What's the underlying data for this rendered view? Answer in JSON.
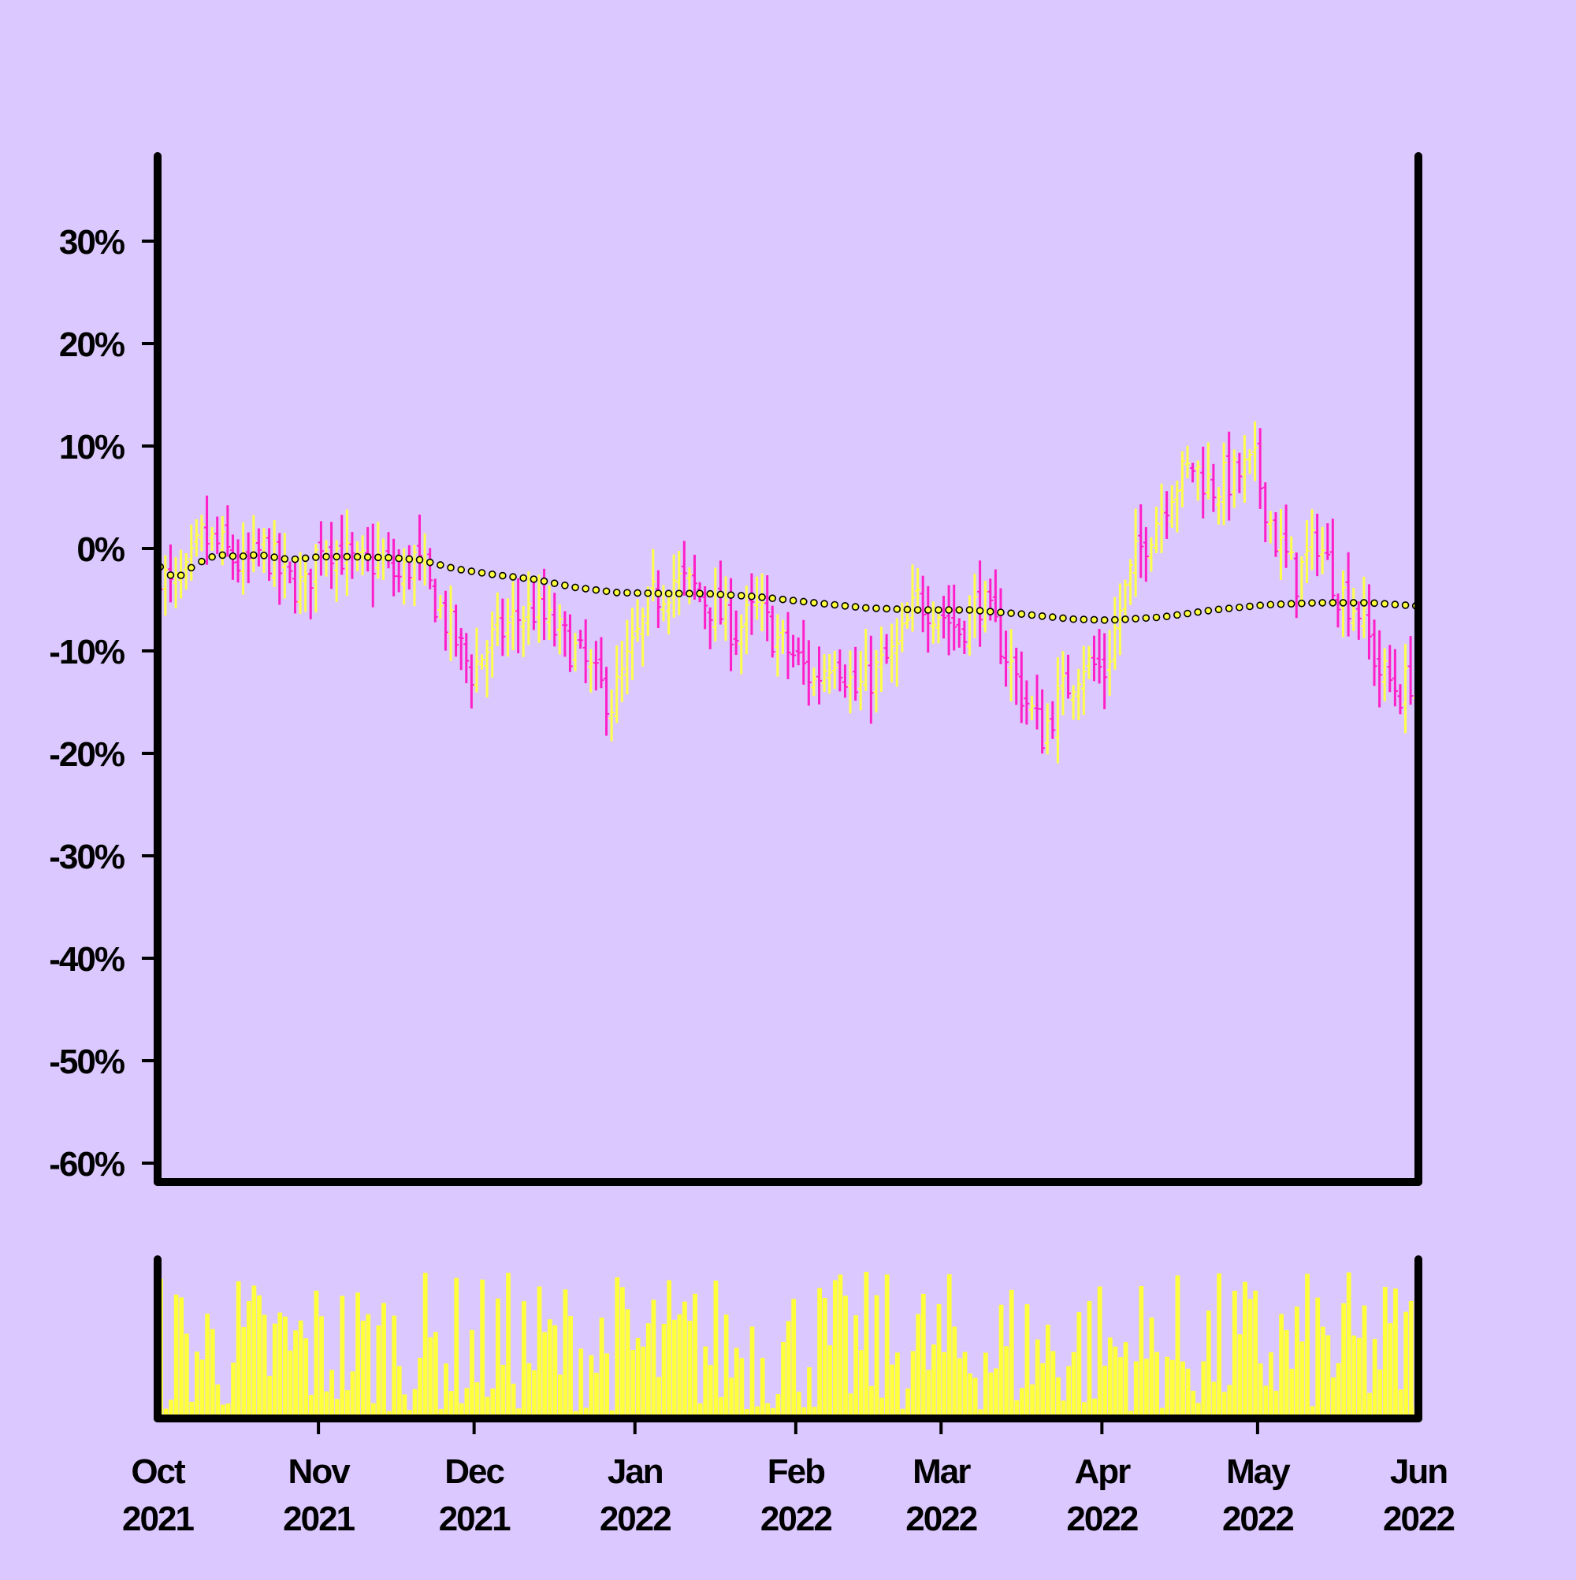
{
  "colors": {
    "background": "#dbc8fe",
    "up": "#ffff4a",
    "down": "#ff1fc8",
    "volume": "#ffff3c",
    "axis": "#000000",
    "moving_average_fill": "#ffff3c"
  },
  "chart_data": {
    "type": "ohlc",
    "title": "",
    "ylabel": "",
    "xlabel": "",
    "ylim": [
      -62,
      38
    ],
    "xlim": [
      "2021-10-01",
      "2022-06-01"
    ],
    "grid": false,
    "legend": "none",
    "y_ticks": [
      {
        "value": 30,
        "label": "30%"
      },
      {
        "value": 20,
        "label": "20%"
      },
      {
        "value": 10,
        "label": "10%"
      },
      {
        "value": 0,
        "label": "0%"
      },
      {
        "value": -10,
        "label": "-10%"
      },
      {
        "value": -20,
        "label": "-20%"
      },
      {
        "value": -30,
        "label": "-30%"
      },
      {
        "value": -40,
        "label": "-40%"
      },
      {
        "value": -50,
        "label": "-50%"
      },
      {
        "value": -60,
        "label": "-60%"
      }
    ],
    "x_ticks": [
      {
        "date": "2021-10-01",
        "month": "Oct",
        "year": "2021"
      },
      {
        "date": "2021-11-01",
        "month": "Nov",
        "year": "2021"
      },
      {
        "date": "2021-12-01",
        "month": "Dec",
        "year": "2021"
      },
      {
        "date": "2022-01-01",
        "month": "Jan",
        "year": "2022"
      },
      {
        "date": "2022-02-01",
        "month": "Feb",
        "year": "2022"
      },
      {
        "date": "2022-03-01",
        "month": "Mar",
        "year": "2022"
      },
      {
        "date": "2022-04-01",
        "month": "Apr",
        "year": "2022"
      },
      {
        "date": "2022-05-01",
        "month": "May",
        "year": "2022"
      },
      {
        "date": "2022-06-01",
        "month": "Jun",
        "year": "2022"
      }
    ],
    "price_close_anchors": [
      [
        "2021-10-01",
        -2
      ],
      [
        "2021-10-03",
        -4
      ],
      [
        "2021-10-06",
        -3
      ],
      [
        "2021-10-09",
        1
      ],
      [
        "2021-10-13",
        0
      ],
      [
        "2021-10-17",
        -2
      ],
      [
        "2021-10-21",
        0
      ],
      [
        "2021-10-25",
        -3
      ],
      [
        "2021-10-29",
        -4
      ],
      [
        "2021-11-01",
        1
      ],
      [
        "2021-11-04",
        0
      ],
      [
        "2021-11-08",
        -2
      ],
      [
        "2021-11-12",
        -1
      ],
      [
        "2021-11-16",
        -3
      ],
      [
        "2021-11-19",
        -1
      ],
      [
        "2021-11-23",
        -5
      ],
      [
        "2021-11-27",
        -9
      ],
      [
        "2021-11-30",
        -12
      ],
      [
        "2021-12-04",
        -9
      ],
      [
        "2021-12-08",
        -7
      ],
      [
        "2021-12-12",
        -6
      ],
      [
        "2021-12-16",
        -8
      ],
      [
        "2021-12-20",
        -10
      ],
      [
        "2021-12-24",
        -13
      ],
      [
        "2021-12-27",
        -15
      ],
      [
        "2021-12-31",
        -10
      ],
      [
        "2022-01-04",
        -5
      ],
      [
        "2022-01-08",
        -3
      ],
      [
        "2022-01-12",
        -4
      ],
      [
        "2022-01-16",
        -6
      ],
      [
        "2022-01-20",
        -8
      ],
      [
        "2022-01-24",
        -6
      ],
      [
        "2022-01-28",
        -9
      ],
      [
        "2022-02-01",
        -11
      ],
      [
        "2022-02-04",
        -13
      ],
      [
        "2022-02-08",
        -10
      ],
      [
        "2022-02-12",
        -14
      ],
      [
        "2022-02-16",
        -12
      ],
      [
        "2022-02-20",
        -10
      ],
      [
        "2022-02-24",
        -5
      ],
      [
        "2022-02-28",
        -6
      ],
      [
        "2022-03-04",
        -8
      ],
      [
        "2022-03-08",
        -5
      ],
      [
        "2022-03-12",
        -9
      ],
      [
        "2022-03-16",
        -14
      ],
      [
        "2022-03-20",
        -18
      ],
      [
        "2022-03-24",
        -14
      ],
      [
        "2022-03-28",
        -11
      ],
      [
        "2022-04-01",
        -12
      ],
      [
        "2022-04-04",
        -6
      ],
      [
        "2022-04-07",
        -1
      ],
      [
        "2022-04-10",
        2
      ],
      [
        "2022-04-14",
        6
      ],
      [
        "2022-04-18",
        8
      ],
      [
        "2022-04-22",
        6
      ],
      [
        "2022-04-26",
        7
      ],
      [
        "2022-04-30",
        8
      ],
      [
        "2022-05-04",
        1
      ],
      [
        "2022-05-08",
        -3
      ],
      [
        "2022-05-12",
        1
      ],
      [
        "2022-05-16",
        -4
      ],
      [
        "2022-05-20",
        -6
      ],
      [
        "2022-05-24",
        -12
      ],
      [
        "2022-05-28",
        -14
      ],
      [
        "2022-05-31",
        -12
      ]
    ],
    "moving_average_anchors": [
      [
        "2021-10-01",
        -1.8
      ],
      [
        "2021-10-04",
        -3.0
      ],
      [
        "2021-10-08",
        -1.5
      ],
      [
        "2021-10-12",
        -0.6
      ],
      [
        "2021-10-16",
        -0.8
      ],
      [
        "2021-10-20",
        -0.6
      ],
      [
        "2021-10-26",
        -1.1
      ],
      [
        "2021-11-01",
        -0.8
      ],
      [
        "2021-11-07",
        -0.8
      ],
      [
        "2021-11-14",
        -0.9
      ],
      [
        "2021-11-20",
        -1.1
      ],
      [
        "2021-11-27",
        -2.0
      ],
      [
        "2021-12-05",
        -2.6
      ],
      [
        "2021-12-12",
        -3.0
      ],
      [
        "2021-12-20",
        -3.8
      ],
      [
        "2021-12-28",
        -4.3
      ],
      [
        "2022-01-06",
        -4.4
      ],
      [
        "2022-01-14",
        -4.4
      ],
      [
        "2022-01-24",
        -4.7
      ],
      [
        "2022-02-04",
        -5.3
      ],
      [
        "2022-02-14",
        -5.8
      ],
      [
        "2022-02-24",
        -6.0
      ],
      [
        "2022-03-06",
        -6.0
      ],
      [
        "2022-03-16",
        -6.4
      ],
      [
        "2022-03-26",
        -6.9
      ],
      [
        "2022-04-02",
        -7.0
      ],
      [
        "2022-04-12",
        -6.7
      ],
      [
        "2022-04-22",
        -6.0
      ],
      [
        "2022-05-02",
        -5.5
      ],
      [
        "2022-05-12",
        -5.3
      ],
      [
        "2022-05-22",
        -5.3
      ],
      [
        "2022-05-31",
        -5.6
      ]
    ],
    "volume_relative_range": [
      0.05,
      1.0
    ]
  }
}
